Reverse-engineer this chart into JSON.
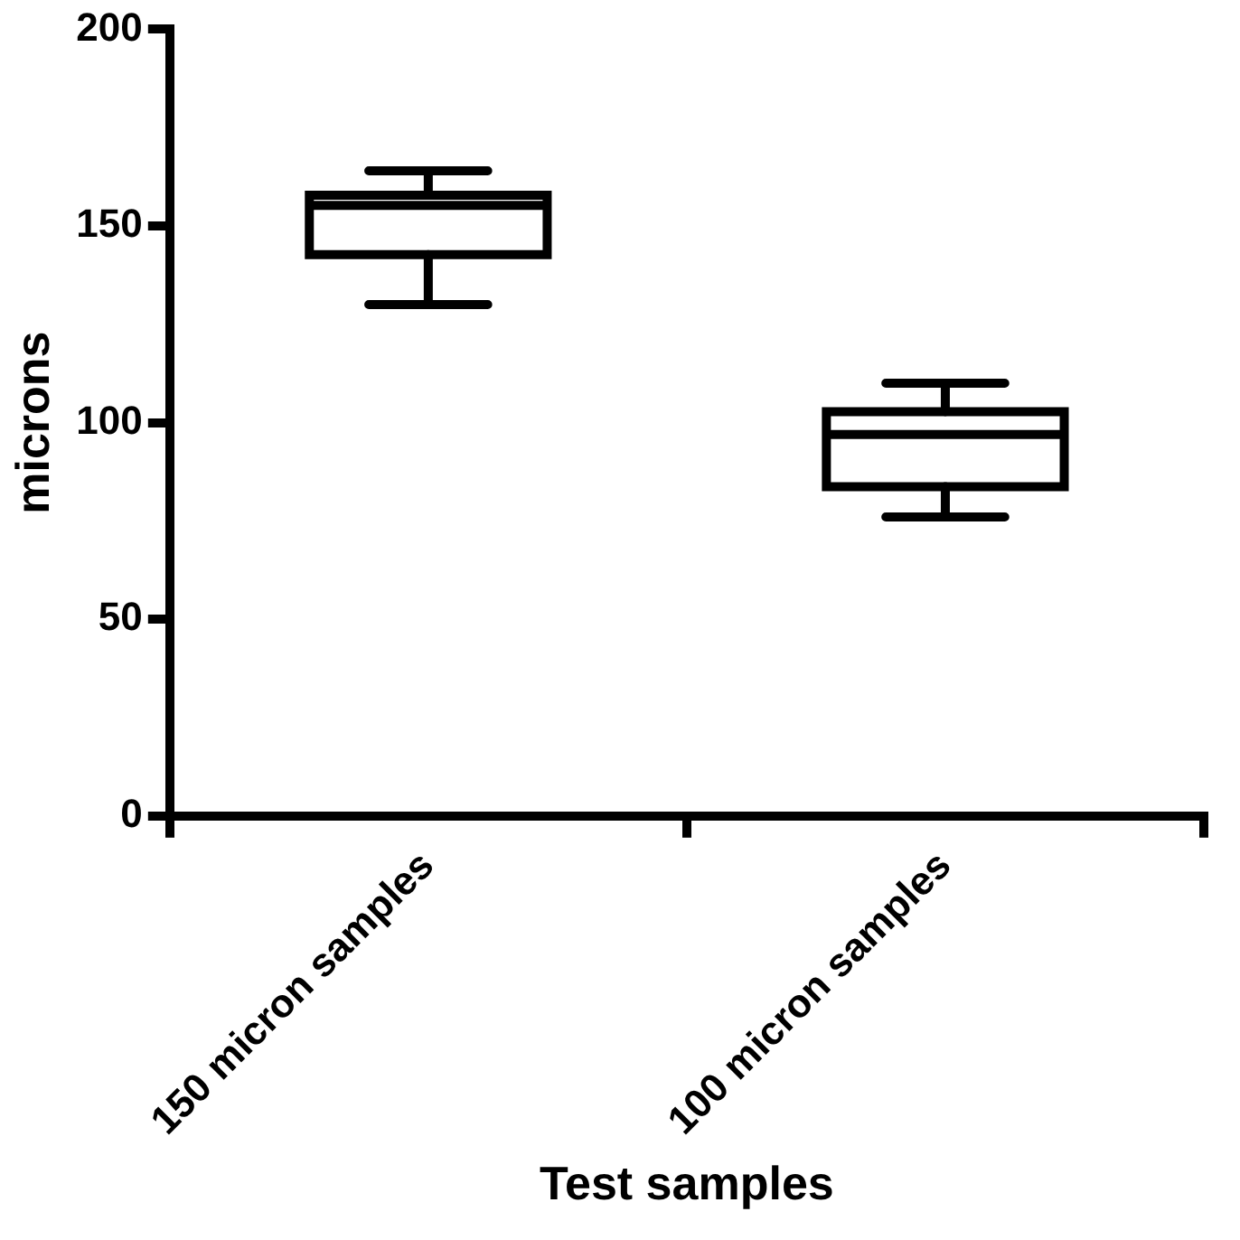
{
  "chart_data": {
    "type": "box",
    "xlabel": "Test samples",
    "ylabel": "microns",
    "categories": [
      "150 micron samples",
      "100 micron samples"
    ],
    "ylim": [
      0,
      200
    ],
    "yticks": [
      0,
      50,
      100,
      150,
      200
    ],
    "color": "#000000",
    "boxes": [
      {
        "low": 130,
        "q1": 142.7,
        "median": 155.2,
        "q3": 157.8,
        "high": 164
      },
      {
        "low": 76,
        "q1": 83.7,
        "median": 97,
        "q3": 102.8,
        "high": 110
      }
    ]
  }
}
